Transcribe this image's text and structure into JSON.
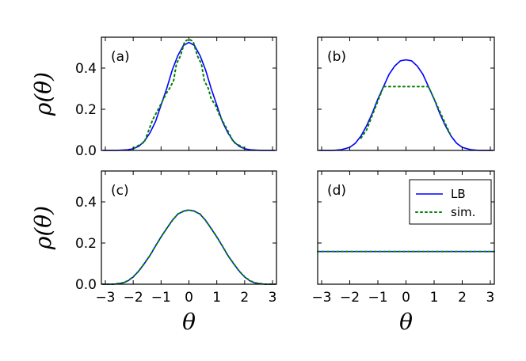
{
  "chart_data": [
    {
      "type": "line",
      "panel_label": "(a)",
      "xlim": [
        -3.14159,
        3.14159
      ],
      "ylim": [
        0,
        0.55
      ],
      "xticks": [
        -3,
        -2,
        -1,
        0,
        1,
        2,
        3
      ],
      "yticks": [
        0.0,
        0.2,
        0.4
      ],
      "ylabel": "ρ(θ)",
      "xlabel": "",
      "series": [
        {
          "name": "LB",
          "style": "solid",
          "color": "#0000ff",
          "x": [
            -3.1,
            -2.6,
            -2.2,
            -2.0,
            -1.8,
            -1.6,
            -1.4,
            -1.2,
            -1.0,
            -0.8,
            -0.6,
            -0.4,
            -0.2,
            0,
            0.2,
            0.4,
            0.6,
            0.8,
            1.0,
            1.2,
            1.4,
            1.6,
            1.8,
            2.0,
            2.2,
            2.6,
            3.1
          ],
          "y": [
            0.0,
            0.0,
            0.003,
            0.008,
            0.02,
            0.045,
            0.085,
            0.14,
            0.22,
            0.3,
            0.39,
            0.46,
            0.51,
            0.525,
            0.51,
            0.46,
            0.39,
            0.3,
            0.22,
            0.14,
            0.085,
            0.045,
            0.02,
            0.008,
            0.003,
            0.0,
            0.0
          ]
        },
        {
          "name": "sim.",
          "style": "dotted",
          "color": "#008000",
          "x": [
            -2.0,
            -1.6,
            -1.3,
            -1.1,
            -0.95,
            -0.8,
            -0.7,
            -0.55,
            -0.45,
            -0.3,
            -0.15,
            0,
            0.15,
            0.3,
            0.45,
            0.55,
            0.7,
            0.8,
            0.95,
            1.1,
            1.3,
            1.6,
            2.0
          ],
          "y": [
            0.01,
            0.04,
            0.15,
            0.2,
            0.24,
            0.28,
            0.3,
            0.34,
            0.42,
            0.46,
            0.53,
            0.54,
            0.53,
            0.46,
            0.42,
            0.34,
            0.3,
            0.25,
            0.22,
            0.17,
            0.12,
            0.04,
            0.01
          ]
        }
      ]
    },
    {
      "type": "line",
      "panel_label": "(b)",
      "xlim": [
        -3.14159,
        3.14159
      ],
      "ylim": [
        0,
        0.55
      ],
      "xticks": [
        -3,
        -2,
        -1,
        0,
        1,
        2,
        3
      ],
      "yticks": [
        0.0,
        0.2,
        0.4
      ],
      "ylabel": "",
      "xlabel": "",
      "series": [
        {
          "name": "LB",
          "style": "solid",
          "color": "#0000ff",
          "x": [
            -3.1,
            -2.6,
            -2.3,
            -2.0,
            -1.8,
            -1.6,
            -1.4,
            -1.2,
            -1.0,
            -0.8,
            -0.6,
            -0.4,
            -0.2,
            0,
            0.2,
            0.4,
            0.6,
            0.8,
            1.0,
            1.2,
            1.4,
            1.6,
            1.8,
            2.0,
            2.3,
            2.6,
            3.1
          ],
          "y": [
            0.0,
            0.0,
            0.004,
            0.015,
            0.035,
            0.07,
            0.12,
            0.18,
            0.25,
            0.31,
            0.37,
            0.41,
            0.435,
            0.44,
            0.435,
            0.41,
            0.37,
            0.31,
            0.25,
            0.18,
            0.12,
            0.07,
            0.035,
            0.015,
            0.004,
            0.0,
            0.0
          ]
        },
        {
          "name": "sim.",
          "style": "dotted",
          "color": "#008000",
          "x": [
            -1.6,
            -1.4,
            -1.2,
            -1.0,
            -0.8,
            0.8,
            1.0,
            1.2,
            1.4,
            1.6
          ],
          "y": [
            0.06,
            0.1,
            0.17,
            0.24,
            0.31,
            0.31,
            0.25,
            0.19,
            0.13,
            0.07
          ]
        }
      ]
    },
    {
      "type": "line",
      "panel_label": "(c)",
      "xlim": [
        -3.14159,
        3.14159
      ],
      "ylim": [
        0,
        0.55
      ],
      "xticks": [
        -3,
        -2,
        -1,
        0,
        1,
        2,
        3
      ],
      "yticks": [
        0.0,
        0.2,
        0.4
      ],
      "ylabel": "ρ(θ)",
      "xlabel": "θ",
      "series": [
        {
          "name": "LB",
          "style": "solid",
          "color": "#0000ff",
          "x": [
            -3.1,
            -2.7,
            -2.4,
            -2.2,
            -2.0,
            -1.8,
            -1.6,
            -1.4,
            -1.2,
            -1.0,
            -0.8,
            -0.6,
            -0.4,
            -0.2,
            0,
            0.2,
            0.4,
            0.6,
            0.8,
            1.0,
            1.2,
            1.4,
            1.6,
            1.8,
            2.0,
            2.2,
            2.4,
            2.7,
            3.1
          ],
          "y": [
            0.0,
            0.0,
            0.005,
            0.015,
            0.035,
            0.065,
            0.1,
            0.14,
            0.185,
            0.23,
            0.27,
            0.31,
            0.34,
            0.355,
            0.36,
            0.355,
            0.34,
            0.31,
            0.27,
            0.23,
            0.185,
            0.14,
            0.1,
            0.065,
            0.035,
            0.015,
            0.005,
            0.0,
            0.0
          ]
        },
        {
          "name": "sim.",
          "style": "dotted",
          "color": "#008000",
          "x": [
            -3.1,
            -2.7,
            -2.4,
            -2.2,
            -2.0,
            -1.8,
            -1.6,
            -1.4,
            -1.2,
            -1.0,
            -0.8,
            -0.6,
            -0.4,
            -0.2,
            0,
            0.2,
            0.4,
            0.6,
            0.8,
            1.0,
            1.2,
            1.4,
            1.6,
            1.8,
            2.0,
            2.2,
            2.4,
            2.7,
            3.1
          ],
          "y": [
            0.0,
            0.0,
            0.006,
            0.016,
            0.036,
            0.064,
            0.101,
            0.139,
            0.186,
            0.229,
            0.271,
            0.309,
            0.341,
            0.354,
            0.361,
            0.354,
            0.341,
            0.309,
            0.271,
            0.229,
            0.186,
            0.139,
            0.101,
            0.064,
            0.036,
            0.016,
            0.006,
            0.0,
            0.0
          ]
        }
      ]
    },
    {
      "type": "line",
      "panel_label": "(d)",
      "xlim": [
        -3.14159,
        3.14159
      ],
      "ylim": [
        0,
        0.55
      ],
      "xticks": [
        -3,
        -2,
        -1,
        0,
        1,
        2,
        3
      ],
      "yticks": [
        0.0,
        0.2,
        0.4
      ],
      "ylabel": "",
      "xlabel": "θ",
      "legend": {
        "placement": "top-right",
        "entries": [
          "LB",
          "sim."
        ]
      },
      "series": [
        {
          "name": "LB",
          "style": "solid",
          "color": "#0000ff",
          "x": [
            -3.14159,
            3.14159
          ],
          "y": [
            0.159,
            0.159
          ]
        },
        {
          "name": "sim.",
          "style": "dotted",
          "color": "#008000",
          "x": [
            -3.14159,
            3.14159
          ],
          "y": [
            0.159,
            0.159
          ]
        }
      ]
    }
  ]
}
